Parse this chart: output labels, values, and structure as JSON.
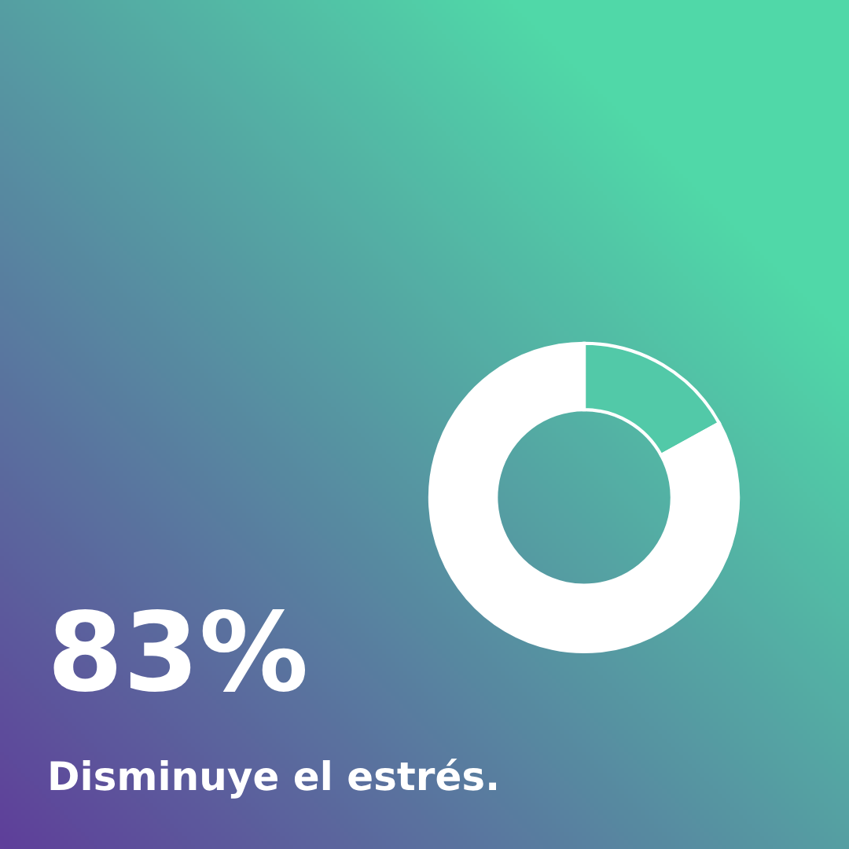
{
  "chart_data": {
    "type": "donut",
    "title": "Disminuye el estrés.",
    "categories": [
      null,
      null
    ],
    "values": [
      17,
      83
    ],
    "colors": [
      "#52c9a8",
      "#ffffff"
    ],
    "value_labels": [
      null,
      "83%"
    ]
  }
}
